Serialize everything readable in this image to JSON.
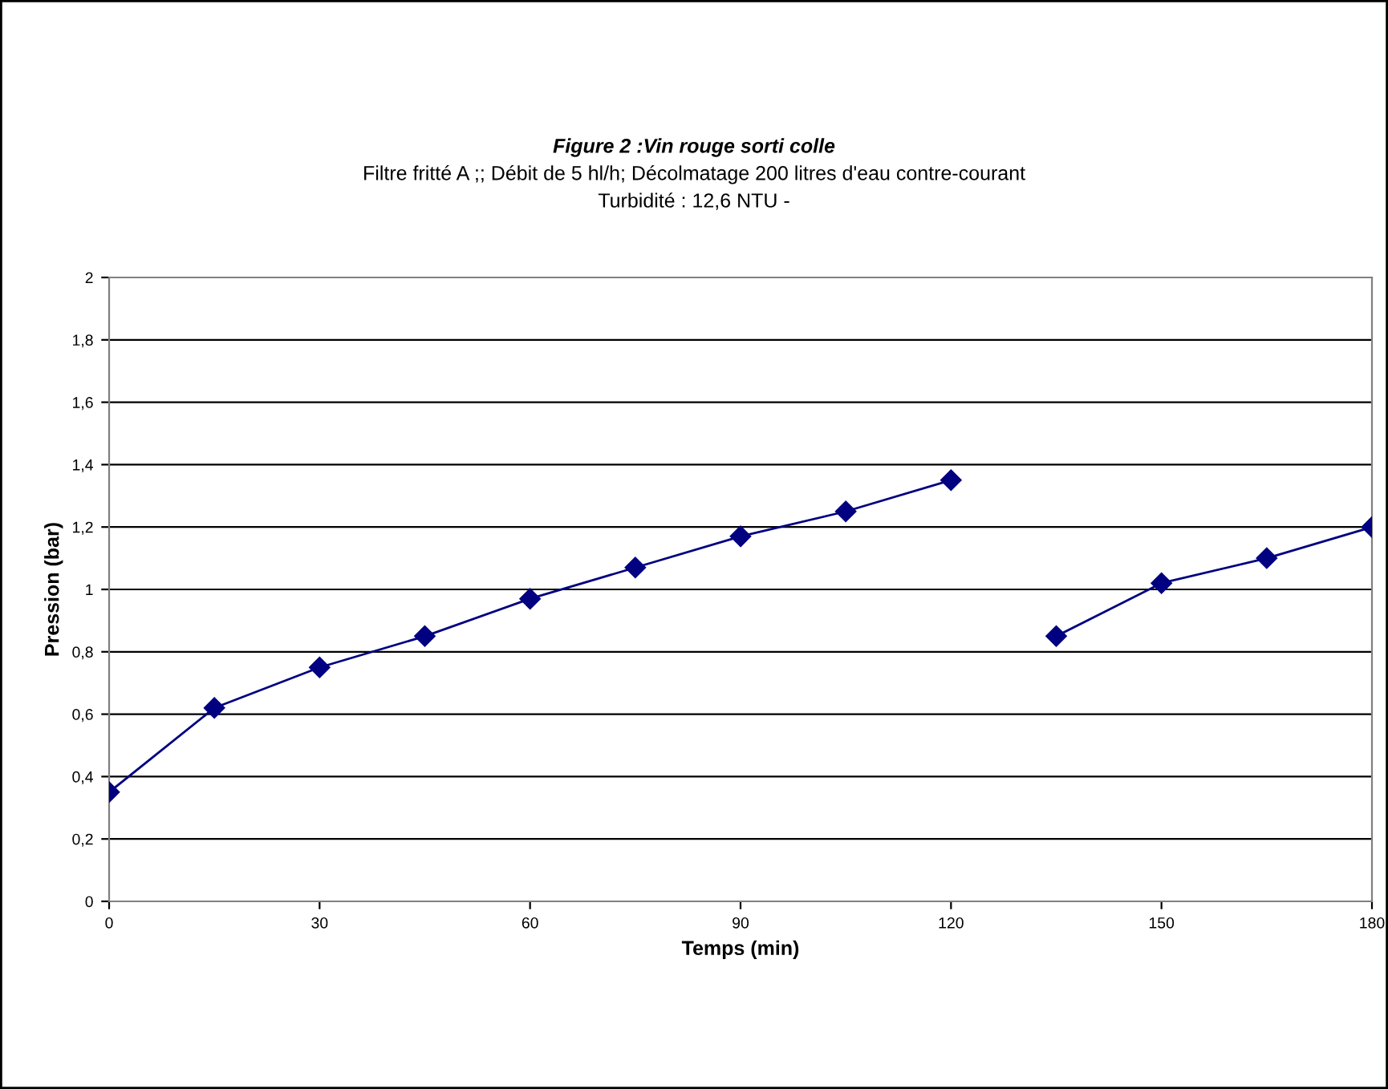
{
  "chart_data": {
    "type": "line",
    "title": "Figure 2 :Vin rouge sorti colle",
    "subtitle": "Filtre fritté A ;; Débit de 5 hl/h; Décolmatage 200 litres d'eau contre-courant\nTurbidité : 12,6 NTU -",
    "xlabel": "Temps (min)",
    "ylabel": "Pression (bar)",
    "x": [
      0,
      15,
      30,
      45,
      60,
      75,
      90,
      105,
      120,
      135,
      150,
      165,
      180
    ],
    "series": [
      {
        "color": "#000080",
        "values": [
          0.35,
          0.62,
          0.75,
          0.85,
          0.97,
          1.07,
          1.17,
          1.25,
          1.35,
          null,
          null,
          null,
          null
        ]
      },
      {
        "color": "#000080",
        "values": [
          null,
          null,
          null,
          null,
          null,
          null,
          null,
          null,
          null,
          0.85,
          1.02,
          1.1,
          1.2
        ]
      }
    ],
    "xlim": [
      0,
      180
    ],
    "xticks": [
      0,
      30,
      60,
      90,
      120,
      150,
      180
    ],
    "ylim": [
      0,
      2
    ],
    "yticks": [
      0,
      {
        "value": 0.2,
        "label": "0,2"
      },
      {
        "value": 0.4,
        "label": "0,4"
      },
      {
        "value": 0.6,
        "label": "0,6"
      },
      {
        "value": 0.8,
        "label": "0,8"
      },
      1,
      {
        "value": 1.2,
        "label": "1,2"
      },
      {
        "value": 1.4,
        "label": "1,4"
      },
      {
        "value": 1.6,
        "label": "1,6"
      },
      {
        "value": 1.8,
        "label": "1,8"
      },
      2
    ],
    "grid": "y",
    "marker": "diamond",
    "line_style": "solid",
    "legend": false
  }
}
